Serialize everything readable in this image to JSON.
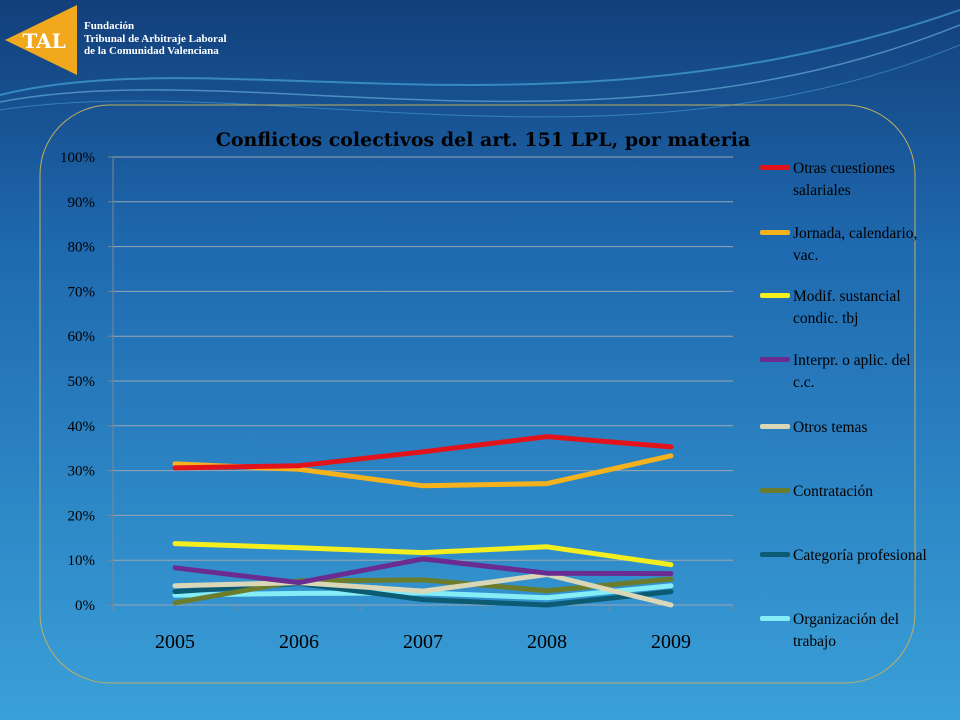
{
  "organization": {
    "logo_text": "TAL",
    "line1": "Fundación",
    "line2": "Tribunal de Arbitraje Laboral",
    "line3": "de la Comunidad Valenciana"
  },
  "colors": {
    "background_top": "#123f7a",
    "background_bottom": "#3aa0d8",
    "logo": "#f2a81d",
    "panel_border": "#bfae62"
  },
  "chart_data": {
    "type": "line",
    "title": "Conflictos colectivos  del art. 151 LPL, por materia",
    "xlabel": "",
    "ylabel": "",
    "categories": [
      "2005",
      "2006",
      "2007",
      "2008",
      "2009"
    ],
    "ylim": [
      0,
      100
    ],
    "y_ticks": [
      "0%",
      "10%",
      "20%",
      "30%",
      "40%",
      "50%",
      "60%",
      "70%",
      "80%",
      "90%",
      "100%"
    ],
    "grid": true,
    "legend_position": "right",
    "series": [
      {
        "name": "Otras cuestiones salariales",
        "color": "#e3131b",
        "values": [
          30.6,
          31.1,
          34.2,
          37.6,
          35.3
        ]
      },
      {
        "name": "Jornada, calendario, vac.",
        "color": "#f5b21c",
        "values": [
          31.5,
          30.3,
          26.6,
          27.1,
          33.3
        ]
      },
      {
        "name": "Modif. sustancial condic. tbj",
        "color": "#f4ee1f",
        "values": [
          13.7,
          12.8,
          11.7,
          13.0,
          9.0
        ]
      },
      {
        "name": "Interpr. o aplic. del c.c.",
        "color": "#6a2c91",
        "values": [
          8.3,
          5.0,
          10.3,
          7.1,
          7.0
        ]
      },
      {
        "name": "Otros temas",
        "color": "#d9d7b7",
        "values": [
          4.3,
          5.0,
          3.1,
          6.8,
          0.0
        ]
      },
      {
        "name": "Contratación",
        "color": "#6b7d2c",
        "values": [
          0.5,
          5.4,
          5.6,
          3.2,
          5.8
        ]
      },
      {
        "name": "Categoría profesional",
        "color": "#0c5b72",
        "values": [
          3.0,
          4.8,
          1.2,
          0.0,
          3.0
        ]
      },
      {
        "name": "Organización del trabajo",
        "color": "#84edf6",
        "values": [
          2.2,
          2.6,
          2.7,
          1.6,
          4.3
        ]
      }
    ]
  }
}
